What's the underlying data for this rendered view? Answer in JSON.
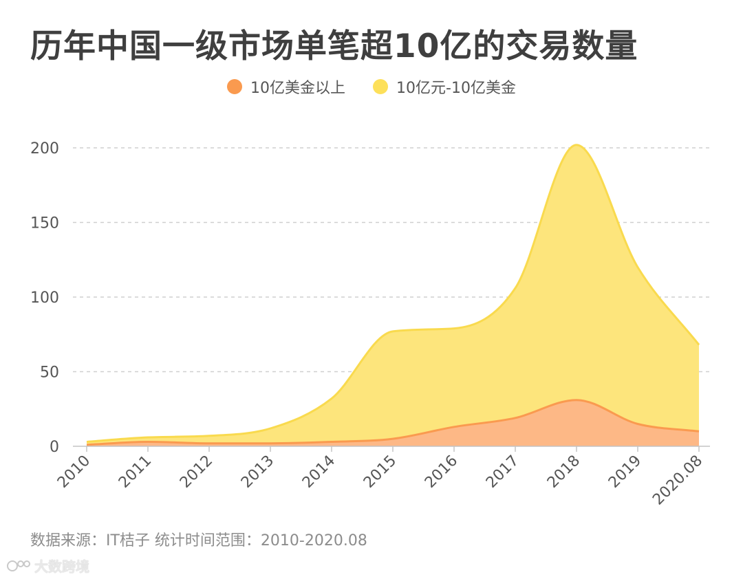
{
  "title": "历年中国一级市场单笔超10亿的交易数量",
  "legend": [
    {
      "label": "10亿美金以上",
      "color": "#fa9a4f"
    },
    {
      "label": "10亿元-10亿美金",
      "color": "#fde05a"
    }
  ],
  "source": "数据来源：IT桔子 统计时间范围：2010-2020.08",
  "watermark": "大数跨境",
  "chart_data": {
    "type": "area",
    "stacked": true,
    "categories": [
      "2010",
      "2011",
      "2012",
      "2013",
      "2014",
      "2015",
      "2016",
      "2017",
      "2018",
      "2019",
      "2020.08"
    ],
    "series": [
      {
        "name": "10亿美金以上",
        "values": [
          1,
          3,
          2,
          2,
          3,
          5,
          13,
          19,
          31,
          15,
          10
        ],
        "color": "#fa9a4f",
        "fill": "#fdb886"
      },
      {
        "name": "10亿元-10亿美金",
        "values": [
          2,
          3,
          5,
          10,
          29,
          72,
          66,
          87,
          171,
          105,
          58
        ],
        "color": "#f9da4e",
        "fill": "#fde57c"
      }
    ],
    "totals": [
      3,
      6,
      7,
      12,
      32,
      77,
      79,
      106,
      202,
      120,
      68
    ],
    "ylim": [
      0,
      200
    ],
    "yticks": [
      0,
      50,
      100,
      150,
      200
    ],
    "grid": "y-dashed"
  }
}
